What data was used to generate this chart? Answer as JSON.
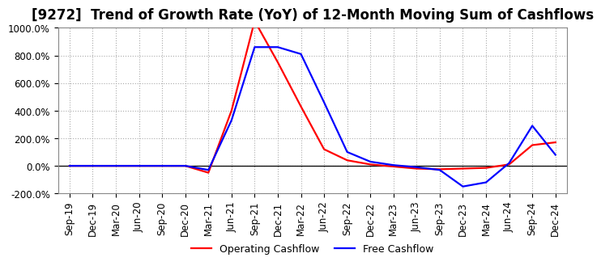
{
  "title": "[9272]  Trend of Growth Rate (YoY) of 12-Month Moving Sum of Cashflows",
  "title_fontsize": 12,
  "ylim": [
    -200,
    1000
  ],
  "yticks": [
    -200,
    0,
    200,
    400,
    600,
    800,
    1000
  ],
  "background_color": "#ffffff",
  "grid_color": "#aaaaaa",
  "x_labels": [
    "Sep-19",
    "Dec-19",
    "Mar-20",
    "Jun-20",
    "Sep-20",
    "Dec-20",
    "Mar-21",
    "Jun-21",
    "Sep-21",
    "Dec-21",
    "Mar-22",
    "Jun-22",
    "Sep-22",
    "Dec-22",
    "Mar-23",
    "Jun-23",
    "Sep-23",
    "Dec-23",
    "Mar-24",
    "Jun-24",
    "Sep-24",
    "Dec-24"
  ],
  "operating_cashflow": [
    0.0,
    0.0,
    0.0,
    0.0,
    0.0,
    0.0,
    -50.0,
    400.0,
    1050.0,
    750.0,
    430.0,
    120.0,
    40.0,
    10.0,
    -5.0,
    -20.0,
    -25.0,
    -20.0,
    -15.0,
    10.0,
    150.0,
    170.0
  ],
  "free_cashflow": [
    0.0,
    0.0,
    0.0,
    0.0,
    0.0,
    0.0,
    -30.0,
    330.0,
    860.0,
    860.0,
    810.0,
    460.0,
    100.0,
    30.0,
    5.0,
    -10.0,
    -30.0,
    -150.0,
    -120.0,
    20.0,
    290.0,
    80.0
  ],
  "op_color": "#ff0000",
  "free_color": "#0000ff",
  "line_width": 1.6
}
